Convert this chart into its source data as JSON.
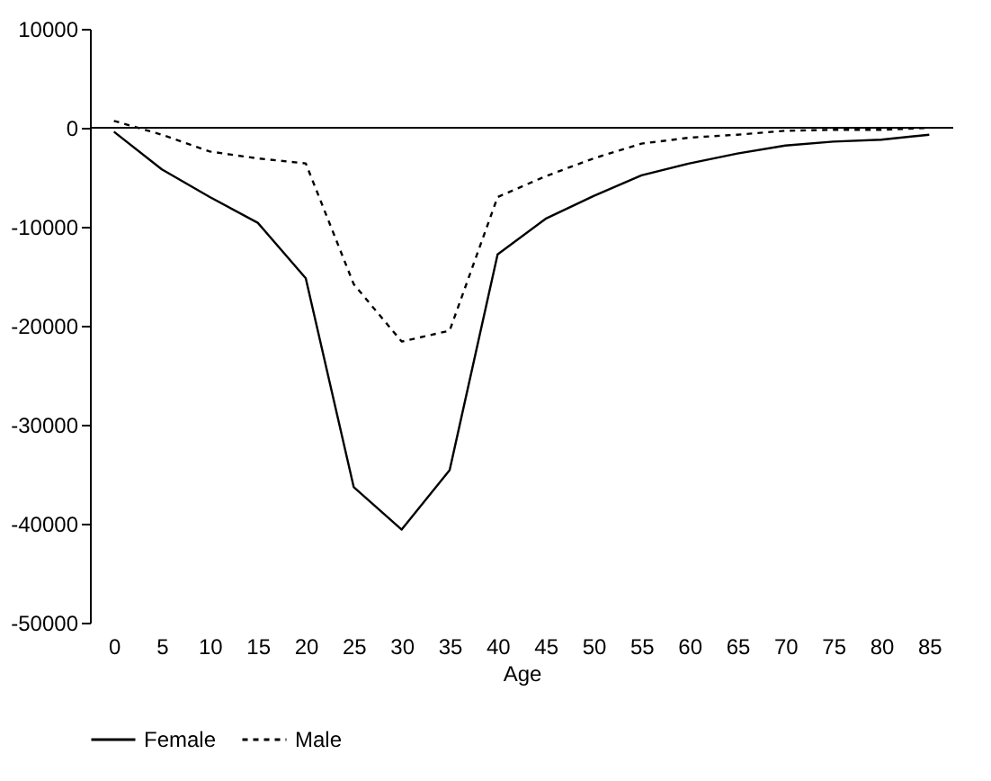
{
  "chart_data": {
    "type": "line",
    "xlabel": "Age",
    "categories": [
      "0",
      "5",
      "10",
      "15",
      "20",
      "25",
      "30",
      "35",
      "40",
      "45",
      "50",
      "55",
      "60",
      "65",
      "70",
      "75",
      "80",
      "85"
    ],
    "series": [
      {
        "name": "Female",
        "color": "#000000",
        "line_style": "solid",
        "values": [
          -400,
          -4200,
          -7000,
          -9600,
          -15200,
          -36300,
          -40600,
          -34600,
          -12800,
          -9200,
          -6900,
          -4800,
          -3600,
          -2600,
          -1800,
          -1400,
          -1200,
          -700
        ]
      },
      {
        "name": "Male",
        "color": "#000000",
        "line_style": "dotted",
        "values": [
          700,
          -700,
          -2400,
          -3100,
          -3600,
          -15800,
          -21600,
          -20500,
          -7000,
          -4900,
          -3100,
          -1600,
          -1000,
          -700,
          -300,
          -200,
          -200,
          0
        ]
      }
    ],
    "ylim": [
      -50000,
      10000
    ],
    "yticks": [
      -50000,
      -40000,
      -30000,
      -20000,
      -10000,
      0,
      10000
    ],
    "ref_lines": [
      {
        "axis": "y",
        "value": 0
      }
    ],
    "grid": false,
    "legend": "bottom",
    "marker": "none"
  }
}
